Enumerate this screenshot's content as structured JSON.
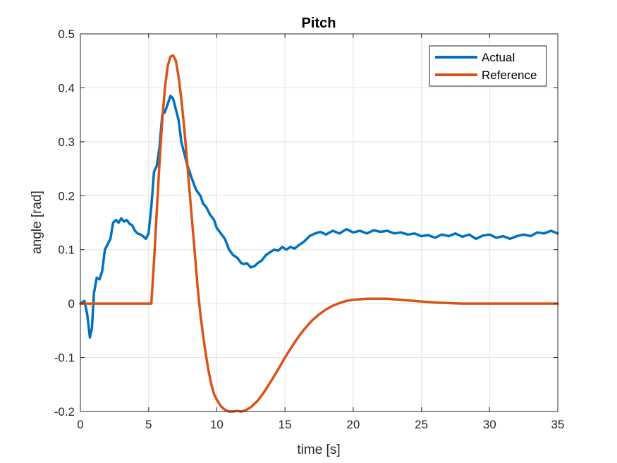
{
  "chart_data": {
    "type": "line",
    "title": "Pitch",
    "xlabel": "time [s]",
    "ylabel": "angle [rad]",
    "xlim": [
      0,
      35
    ],
    "ylim": [
      -0.2,
      0.5
    ],
    "xticks": [
      0,
      5,
      10,
      15,
      20,
      25,
      30,
      35
    ],
    "yticks": [
      -0.2,
      -0.1,
      0,
      0.1,
      0.2,
      0.3,
      0.4,
      0.5
    ],
    "xtick_labels": [
      "0",
      "5",
      "10",
      "15",
      "20",
      "25",
      "30",
      "35"
    ],
    "ytick_labels": [
      "-0.2",
      "-0.1",
      "0",
      "0.1",
      "0.2",
      "0.3",
      "0.4",
      "0.5"
    ],
    "grid": true,
    "legend_position": "top-right",
    "series": [
      {
        "name": "Actual",
        "color": "#0072BD",
        "x": [
          0,
          0.3,
          0.5,
          0.7,
          0.85,
          1.0,
          1.2,
          1.4,
          1.6,
          1.8,
          2.0,
          2.2,
          2.4,
          2.6,
          2.8,
          3.0,
          3.2,
          3.4,
          3.6,
          3.8,
          4.0,
          4.2,
          4.4,
          4.6,
          4.8,
          5.0,
          5.2,
          5.4,
          5.6,
          5.8,
          6.0,
          6.2,
          6.4,
          6.6,
          6.8,
          7.0,
          7.2,
          7.4,
          7.6,
          7.8,
          8.0,
          8.2,
          8.5,
          8.8,
          9.0,
          9.2,
          9.5,
          9.8,
          10.0,
          10.3,
          10.6,
          10.9,
          11.2,
          11.5,
          11.8,
          12.0,
          12.2,
          12.5,
          12.8,
          13.0,
          13.3,
          13.6,
          13.9,
          14.2,
          14.5,
          14.8,
          15.1,
          15.4,
          15.7,
          16.0,
          16.4,
          16.8,
          17.2,
          17.6,
          18.0,
          18.5,
          19.0,
          19.5,
          20.0,
          20.5,
          21.0,
          21.5,
          22.0,
          22.5,
          23.0,
          23.5,
          24.0,
          24.5,
          25.0,
          25.5,
          26.0,
          26.5,
          27.0,
          27.5,
          28.0,
          28.5,
          29.0,
          29.5,
          30.0,
          30.5,
          31.0,
          31.5,
          32.0,
          32.5,
          33.0,
          33.5,
          34.0,
          34.5,
          35.0
        ],
        "y": [
          0,
          0.005,
          -0.02,
          -0.063,
          -0.045,
          0.02,
          0.048,
          0.045,
          0.06,
          0.1,
          0.11,
          0.12,
          0.15,
          0.155,
          0.15,
          0.158,
          0.152,
          0.155,
          0.148,
          0.145,
          0.135,
          0.13,
          0.128,
          0.125,
          0.12,
          0.13,
          0.18,
          0.245,
          0.255,
          0.29,
          0.35,
          0.355,
          0.37,
          0.385,
          0.38,
          0.36,
          0.34,
          0.3,
          0.28,
          0.26,
          0.245,
          0.23,
          0.21,
          0.2,
          0.185,
          0.18,
          0.165,
          0.155,
          0.14,
          0.13,
          0.12,
          0.1,
          0.09,
          0.085,
          0.075,
          0.073,
          0.075,
          0.067,
          0.07,
          0.075,
          0.08,
          0.09,
          0.095,
          0.1,
          0.098,
          0.105,
          0.1,
          0.105,
          0.102,
          0.108,
          0.115,
          0.125,
          0.13,
          0.133,
          0.128,
          0.135,
          0.13,
          0.138,
          0.132,
          0.135,
          0.13,
          0.136,
          0.133,
          0.135,
          0.13,
          0.132,
          0.128,
          0.13,
          0.125,
          0.127,
          0.122,
          0.128,
          0.125,
          0.13,
          0.124,
          0.128,
          0.12,
          0.126,
          0.128,
          0.122,
          0.125,
          0.12,
          0.125,
          0.128,
          0.125,
          0.132,
          0.13,
          0.135,
          0.13
        ]
      },
      {
        "name": "Reference",
        "color": "#D95319",
        "x": [
          0,
          1,
          2,
          3,
          4,
          5,
          5.2,
          5.4,
          5.6,
          5.8,
          6.0,
          6.2,
          6.4,
          6.6,
          6.8,
          7.0,
          7.2,
          7.4,
          7.6,
          7.8,
          8.0,
          8.2,
          8.4,
          8.6,
          8.8,
          9.0,
          9.2,
          9.4,
          9.6,
          9.8,
          10.0,
          10.3,
          10.6,
          10.9,
          11.2,
          11.5,
          11.8,
          12.1,
          12.5,
          13.0,
          13.5,
          14.0,
          14.5,
          15.0,
          15.5,
          16.0,
          16.5,
          17.0,
          17.5,
          18.0,
          18.5,
          19.0,
          19.5,
          20.0,
          20.5,
          21.0,
          21.5,
          22.0,
          22.5,
          23.0,
          24.0,
          25.0,
          26.0,
          27.0,
          28.0,
          29.0,
          30.0,
          31.0,
          32.0,
          33.0,
          34.0,
          35.0
        ],
        "y": [
          0,
          0,
          0,
          0,
          0,
          0,
          0,
          0.08,
          0.17,
          0.26,
          0.34,
          0.4,
          0.44,
          0.458,
          0.46,
          0.45,
          0.42,
          0.38,
          0.33,
          0.27,
          0.21,
          0.15,
          0.09,
          0.03,
          -0.02,
          -0.06,
          -0.095,
          -0.125,
          -0.15,
          -0.168,
          -0.178,
          -0.19,
          -0.197,
          -0.2,
          -0.2,
          -0.199,
          -0.2,
          -0.198,
          -0.192,
          -0.18,
          -0.163,
          -0.143,
          -0.122,
          -0.1,
          -0.08,
          -0.061,
          -0.045,
          -0.031,
          -0.02,
          -0.011,
          -0.004,
          0.001,
          0.005,
          0.007,
          0.008,
          0.009,
          0.009,
          0.009,
          0.009,
          0.008,
          0.006,
          0.004,
          0.002,
          0.001,
          0.0,
          0.0,
          0.0,
          0.0,
          0.0,
          0.0,
          0.0,
          0.0
        ]
      }
    ]
  }
}
